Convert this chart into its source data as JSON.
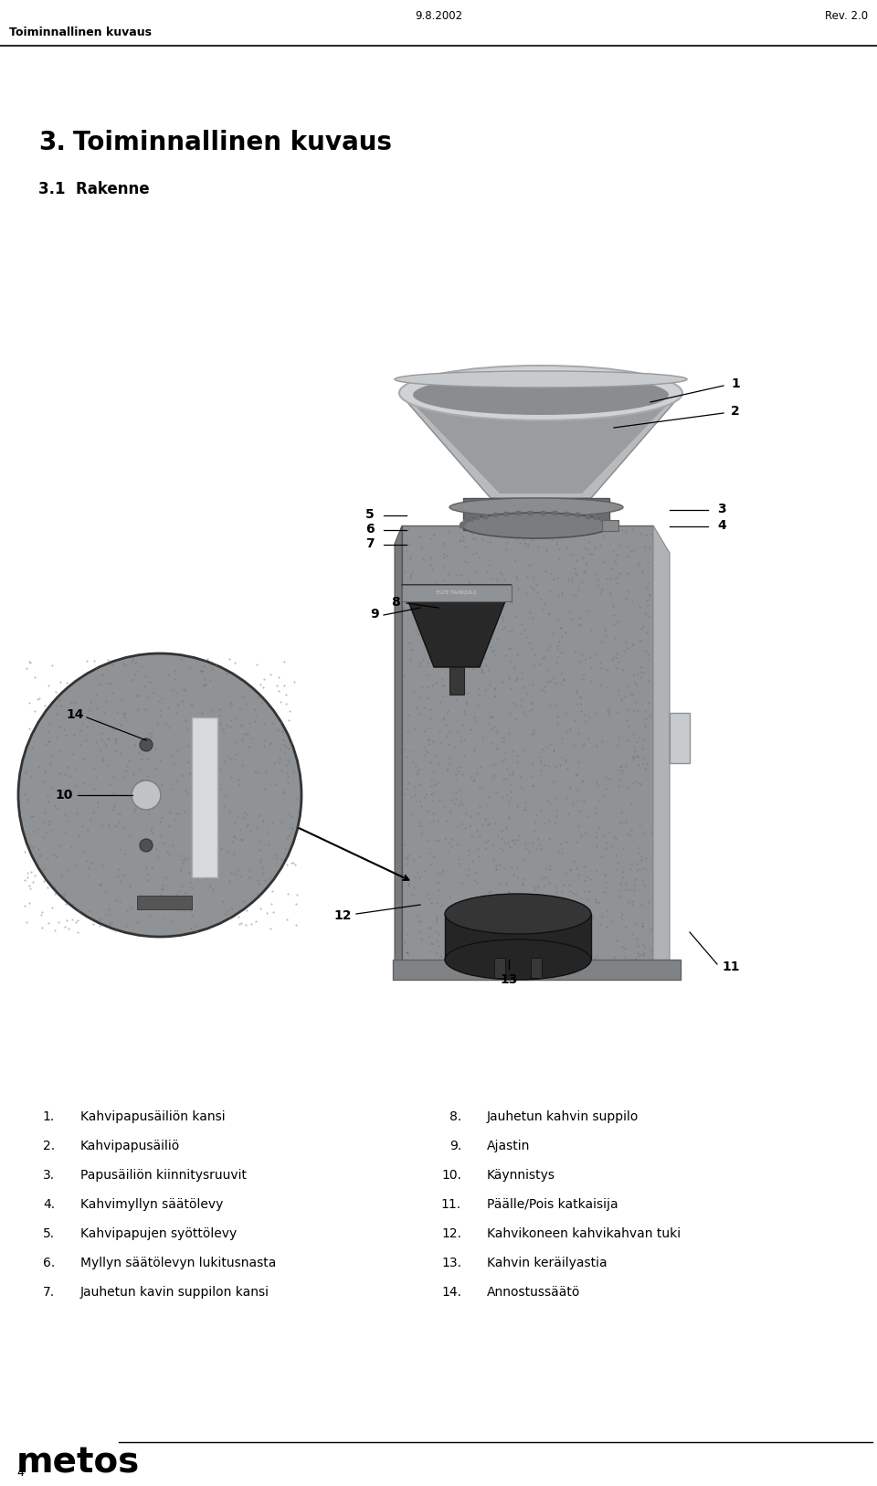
{
  "header_left": "Toiminnallinen kuvaus",
  "header_center": "9.8.2002",
  "header_right": "Rev. 2.0",
  "title_num": "3.",
  "title_text": "Toiminnallinen kuvaus",
  "subtitle": "3.1  Rakenne",
  "footer_brand": "metos",
  "footer_page": "4",
  "bg_color": "#ffffff",
  "text_color": "#000000",
  "list_left": [
    {
      "num": "1.",
      "text": "Kahvipapusäiliön kansi"
    },
    {
      "num": "2.",
      "text": "Kahvipapusäiliö"
    },
    {
      "num": "3.",
      "text": "Papusäiliön kiinnitysruuvit"
    },
    {
      "num": "4.",
      "text": "Kahvimyllyn säätölevy"
    },
    {
      "num": "5.",
      "text": "Kahvipapujen syöttölevy"
    },
    {
      "num": "6.",
      "text": "Myllyn säätölevyn lukitusnasta"
    },
    {
      "num": "7.",
      "text": "Jauhetun kavin suppilon kansi"
    }
  ],
  "list_right": [
    {
      "num": "8.",
      "text": "Jauhetun kahvin suppilo"
    },
    {
      "num": "9.",
      "text": "Ajastin"
    },
    {
      "num": "10.",
      "text": "Käynnistys"
    },
    {
      "num": "11.",
      "text": "Päälle/Pois katkaisija"
    },
    {
      "num": "12.",
      "text": "Kahvikoneen kahvikahvan tuki"
    },
    {
      "num": "13.",
      "text": "Kahvin keräilyastia"
    },
    {
      "num": "14.",
      "text": "Annostussäätö"
    }
  ]
}
